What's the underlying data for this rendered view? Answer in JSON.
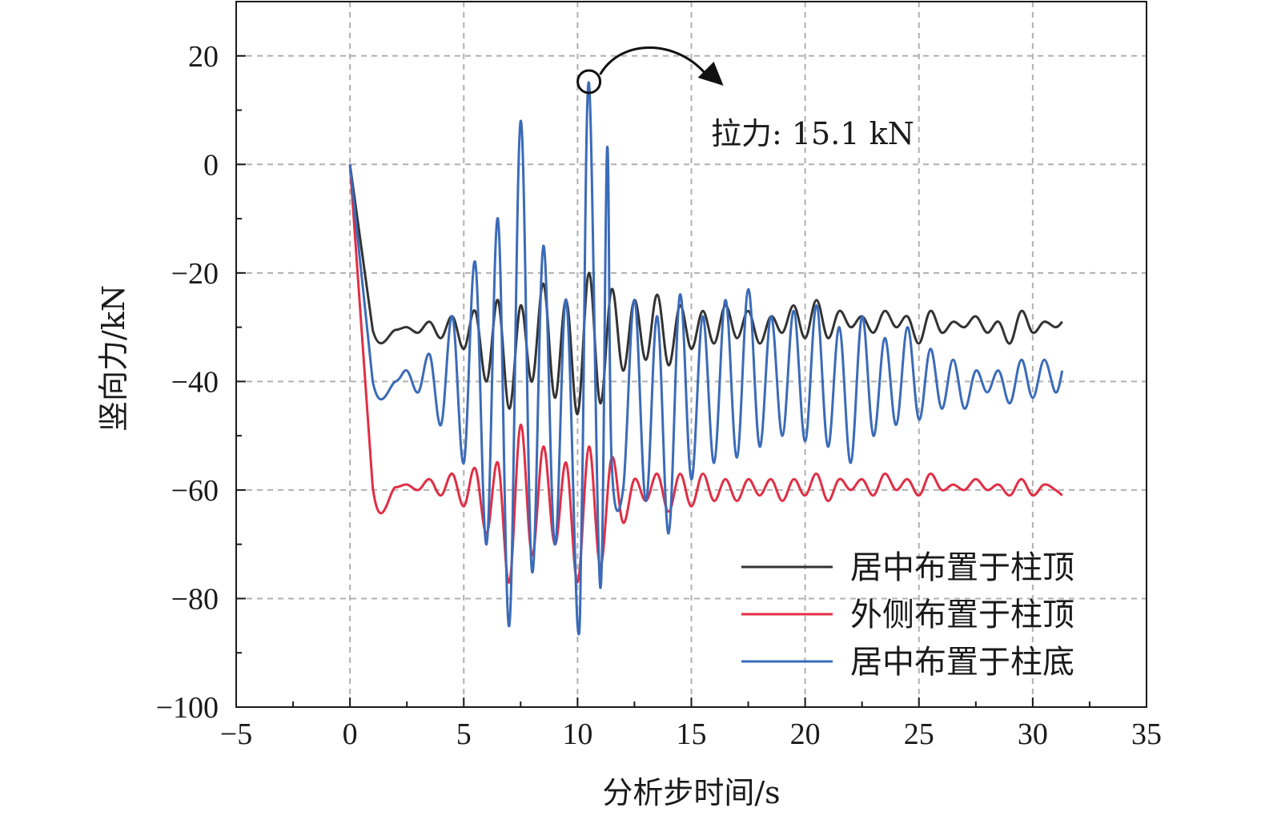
{
  "chart_data": {
    "type": "line",
    "title": "",
    "xlabel": "分析步时间/s",
    "ylabel": "竖向力/kN",
    "xlim": [
      -5,
      35
    ],
    "ylim": [
      -100,
      30
    ],
    "x_ticks": [
      -5,
      0,
      5,
      10,
      15,
      20,
      25,
      30,
      35
    ],
    "y_ticks": [
      -100,
      -80,
      -60,
      -40,
      -20,
      0,
      20
    ],
    "x_tick_labels": [
      "−5",
      "0",
      "5",
      "10",
      "15",
      "20",
      "25",
      "30",
      "35"
    ],
    "y_tick_labels": [
      "−100",
      "−80",
      "−60",
      "−40",
      "−20",
      "0",
      "20"
    ],
    "grid": true,
    "legend_position": "bottom-right",
    "annotation": {
      "text": "拉力: 15.1 kN",
      "x": 10.5,
      "y": 15.1
    },
    "series": [
      {
        "name": "居中布置于柱顶",
        "color": "#333333",
        "x": [
          0,
          1,
          2,
          2.5,
          3,
          3.5,
          4,
          4.5,
          5,
          5.5,
          6,
          6.5,
          7,
          7.5,
          8,
          8.5,
          9,
          9.5,
          10,
          10.5,
          11,
          11.5,
          12,
          12.5,
          13,
          13.5,
          14,
          14.5,
          15,
          15.5,
          16,
          16.5,
          17,
          17.5,
          18,
          18.5,
          19,
          19.5,
          20,
          20.5,
          21,
          21.5,
          22,
          22.5,
          23,
          23.5,
          24,
          24.5,
          25,
          25.5,
          26,
          26.5,
          27,
          27.5,
          28,
          28.5,
          29,
          29.5,
          30,
          30.5,
          31,
          31.3
        ],
        "values": [
          0,
          -30.5,
          -30.5,
          -30,
          -31,
          -29,
          -32,
          -28,
          -34,
          -27,
          -40,
          -25,
          -45,
          -26,
          -40,
          -22,
          -43,
          -25,
          -46,
          -20,
          -44,
          -23,
          -38,
          -25,
          -36,
          -24,
          -37,
          -26,
          -34,
          -27,
          -33,
          -26,
          -32,
          -27,
          -33,
          -28,
          -31,
          -26,
          -32,
          -25,
          -32,
          -27,
          -30,
          -28,
          -31,
          -27,
          -30,
          -28,
          -33,
          -27,
          -31,
          -29,
          -30,
          -28,
          -31,
          -29,
          -33,
          -27,
          -31,
          -29,
          -30,
          -29
        ]
      },
      {
        "name": "外侧布置于柱顶",
        "color": "#e02f45",
        "x": [
          0,
          1,
          2,
          2.5,
          3,
          3.5,
          4,
          4.5,
          5,
          5.5,
          6,
          6.5,
          7,
          7.5,
          8,
          8.5,
          9,
          9.5,
          10,
          10.5,
          11,
          11.5,
          12,
          12.5,
          13,
          13.5,
          14,
          14.5,
          15,
          15.5,
          16,
          16.5,
          17,
          17.5,
          18,
          18.5,
          19,
          19.5,
          20,
          20.5,
          21,
          21.5,
          22,
          22.5,
          23,
          23.5,
          24,
          24.5,
          25,
          25.5,
          26,
          26.5,
          27,
          27.5,
          28,
          28.5,
          29,
          29.5,
          30,
          30.5,
          31,
          31.3
        ],
        "values": [
          0,
          -59.5,
          -59.5,
          -59,
          -60,
          -58,
          -61,
          -57,
          -63,
          -56,
          -68,
          -55,
          -77,
          -48,
          -72,
          -52,
          -70,
          -55,
          -77,
          -52,
          -74,
          -54,
          -66,
          -58,
          -62,
          -57,
          -64,
          -57,
          -63,
          -57,
          -62,
          -58,
          -62,
          -58,
          -61,
          -58,
          -62,
          -58,
          -61,
          -57,
          -62,
          -58,
          -60,
          -58,
          -61,
          -57,
          -60,
          -58,
          -61,
          -57,
          -60,
          -59,
          -60,
          -58,
          -60,
          -59,
          -61,
          -58,
          -61,
          -59,
          -60,
          -61
        ]
      },
      {
        "name": "居中布置于柱底",
        "color": "#3b6bb8",
        "x": [
          0,
          1,
          2,
          2.5,
          3,
          3.5,
          4,
          4.5,
          5,
          5.5,
          6,
          6.5,
          7,
          7.5,
          8,
          8.5,
          9,
          9.5,
          10,
          10.2,
          10.5,
          11,
          11.3,
          11.5,
          12,
          12.5,
          13,
          13.5,
          14,
          14.5,
          15,
          15.5,
          16,
          16.5,
          17,
          17.5,
          18,
          18.5,
          19,
          19.5,
          20,
          20.5,
          21,
          21.5,
          22,
          22.5,
          23,
          23.5,
          24,
          24.5,
          25,
          25.5,
          26,
          26.5,
          27,
          27.5,
          28,
          28.5,
          29,
          29.5,
          30,
          30.5,
          31,
          31.3
        ],
        "values": [
          0,
          -40,
          -40,
          -38,
          -42,
          -35,
          -48,
          -28,
          -55,
          -18,
          -70,
          -10,
          -85,
          8,
          -75,
          -15,
          -70,
          -25,
          -85,
          -60,
          15,
          -78,
          3,
          -55,
          -60,
          -25,
          -62,
          -28,
          -68,
          -24,
          -58,
          -28,
          -55,
          -25,
          -54,
          -23,
          -52,
          -28,
          -50,
          -27,
          -51,
          -26,
          -52,
          -30,
          -55,
          -28,
          -50,
          -32,
          -48,
          -30,
          -47,
          -34,
          -45,
          -36,
          -45,
          -38,
          -42,
          -38,
          -44,
          -36,
          -43,
          -36,
          -42,
          -38
        ]
      }
    ]
  }
}
